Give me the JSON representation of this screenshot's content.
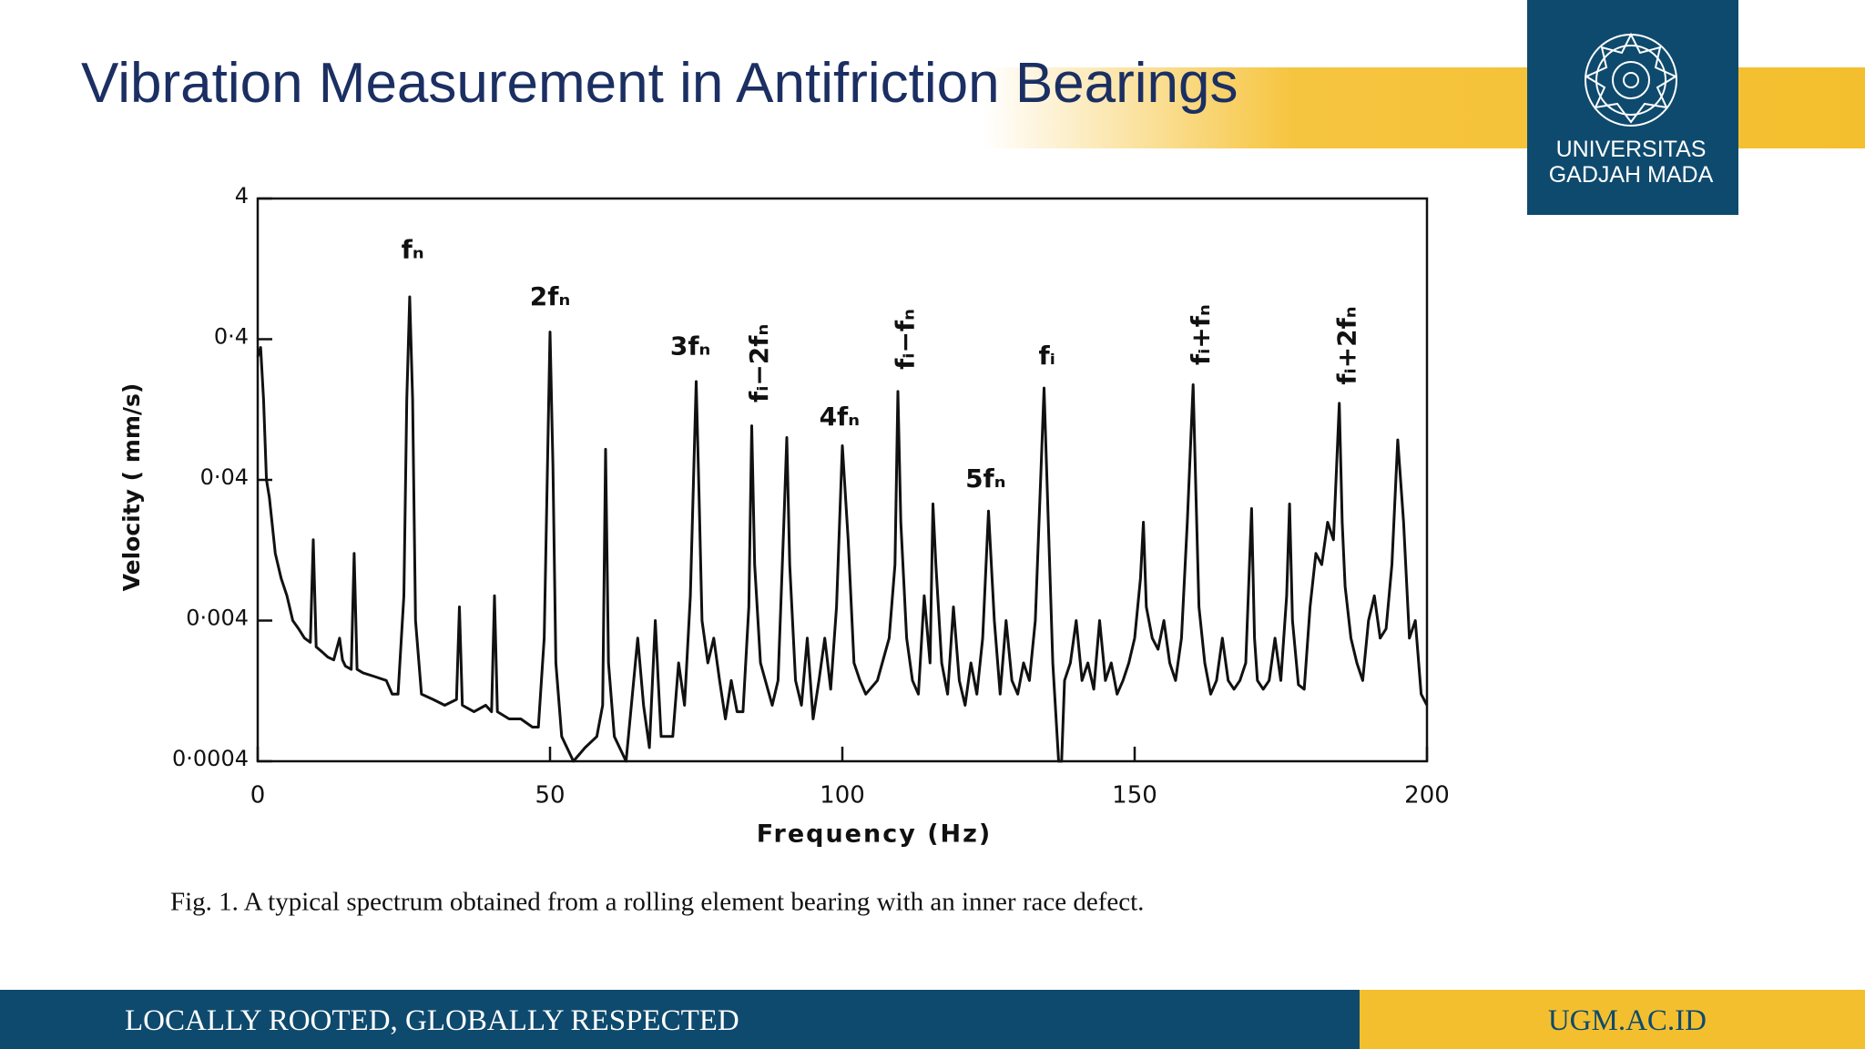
{
  "slide": {
    "title": "Vibration Measurement in Antifriction Bearings",
    "logo_lines": [
      "UNIVERSITAS",
      "GADJAH MADA"
    ],
    "footer_left": "LOCALLY ROOTED, GLOBALLY RESPECTED",
    "footer_right": "UGM.AC.ID"
  },
  "chart_data": {
    "type": "line",
    "xlabel": "Frequency (Hz)",
    "ylabel": "Velocity ( mm/s)",
    "caption": "Fig. 1.   A typical spectrum obtained from a rolling element bearing with an inner race defect.",
    "y_scale": "log",
    "color": "#111111",
    "xlim": [
      0,
      200
    ],
    "xticks": [
      0,
      50,
      100,
      150,
      200
    ],
    "ylim": [
      0.0004,
      4
    ],
    "yticks": [
      {
        "value": 0.0004,
        "label": "0·0004"
      },
      {
        "value": 0.004,
        "label": "0·004"
      },
      {
        "value": 0.04,
        "label": "0·04"
      },
      {
        "value": 0.4,
        "label": "0·4"
      },
      4
    ],
    "x": [
      0,
      0.5,
      1,
      1.5,
      2,
      3,
      4,
      5,
      6,
      7,
      8,
      9,
      9.5,
      10,
      11,
      12,
      13,
      14,
      14.5,
      15,
      16,
      16.5,
      17,
      18,
      20,
      22,
      23,
      24,
      25,
      25.5,
      26,
      26.5,
      27,
      28,
      30,
      32,
      34,
      34.5,
      35,
      37,
      39,
      40,
      40.5,
      41,
      43,
      45,
      47,
      48,
      49,
      50,
      50.5,
      51,
      52,
      54,
      56,
      58,
      59,
      59.5,
      60,
      61,
      63,
      65,
      66,
      67,
      68,
      68.5,
      69,
      71,
      72,
      73,
      74,
      75,
      75.5,
      76,
      77,
      78,
      79,
      80,
      81,
      82,
      83,
      84,
      84.5,
      85,
      86,
      88,
      89,
      90,
      90.5,
      91,
      92,
      93,
      94,
      95,
      96,
      97,
      98,
      99,
      100,
      101,
      102,
      103,
      104,
      106,
      108,
      109,
      109.5,
      110,
      111,
      112,
      113,
      114,
      115,
      115.5,
      116,
      117,
      118,
      119,
      120,
      121,
      122,
      123,
      124,
      125,
      126,
      127,
      128,
      129,
      130,
      131,
      132,
      133,
      134,
      134.5,
      135,
      136,
      137,
      137.5,
      138,
      139,
      140,
      141,
      142,
      143,
      144,
      145,
      146,
      147,
      148,
      149,
      150,
      151,
      151.5,
      152,
      153,
      154,
      155,
      156,
      157,
      158,
      159,
      160,
      160.5,
      161,
      162,
      163,
      164,
      165,
      166,
      167,
      168,
      169,
      170,
      170.5,
      171,
      172,
      173,
      174,
      175,
      176,
      176.5,
      177,
      178,
      179,
      180,
      181,
      182,
      183,
      184,
      185,
      185.5,
      186,
      187,
      188,
      189,
      190,
      191,
      192,
      193,
      194,
      195,
      196,
      197,
      198,
      199,
      200
    ],
    "values": [
      0.3,
      0.35,
      0.15,
      0.04,
      0.03,
      0.012,
      0.008,
      0.006,
      0.004,
      0.0035,
      0.003,
      0.0028,
      0.015,
      0.0026,
      0.0024,
      0.0022,
      0.0021,
      0.003,
      0.0021,
      0.0019,
      0.0018,
      0.012,
      0.0018,
      0.0017,
      0.0016,
      0.0015,
      0.0012,
      0.0012,
      0.006,
      0.15,
      0.8,
      0.15,
      0.004,
      0.0012,
      0.0011,
      0.001,
      0.0011,
      0.005,
      0.001,
      0.0009,
      0.001,
      0.0009,
      0.006,
      0.0009,
      0.0008,
      0.0008,
      0.0007,
      0.0007,
      0.003,
      0.45,
      0.05,
      0.002,
      0.0006,
      0.0004,
      0.0005,
      0.0006,
      0.001,
      0.066,
      0.002,
      0.0006,
      0.0004,
      0.003,
      0.001,
      0.0005,
      0.004,
      0.0015,
      0.0006,
      0.0006,
      0.002,
      0.001,
      0.006,
      0.2,
      0.03,
      0.004,
      0.002,
      0.003,
      0.0015,
      0.0008,
      0.0015,
      0.0009,
      0.0009,
      0.005,
      0.097,
      0.01,
      0.002,
      0.001,
      0.0015,
      0.02,
      0.08,
      0.01,
      0.0015,
      0.001,
      0.003,
      0.0008,
      0.0015,
      0.003,
      0.0013,
      0.005,
      0.07,
      0.015,
      0.002,
      0.0015,
      0.0012,
      0.0015,
      0.003,
      0.01,
      0.17,
      0.02,
      0.003,
      0.0015,
      0.0012,
      0.006,
      0.002,
      0.027,
      0.01,
      0.002,
      0.0012,
      0.005,
      0.0015,
      0.001,
      0.002,
      0.0012,
      0.003,
      0.024,
      0.004,
      0.0012,
      0.004,
      0.0015,
      0.0012,
      0.002,
      0.0015,
      0.004,
      0.05,
      0.18,
      0.04,
      0.002,
      0.0004,
      0.0004,
      0.0015,
      0.002,
      0.004,
      0.0015,
      0.002,
      0.0013,
      0.004,
      0.0015,
      0.002,
      0.0012,
      0.0015,
      0.002,
      0.003,
      0.008,
      0.02,
      0.005,
      0.003,
      0.0025,
      0.004,
      0.002,
      0.0015,
      0.003,
      0.02,
      0.19,
      0.03,
      0.005,
      0.002,
      0.0012,
      0.0015,
      0.003,
      0.0015,
      0.0013,
      0.0015,
      0.002,
      0.025,
      0.003,
      0.0015,
      0.0013,
      0.0015,
      0.003,
      0.0015,
      0.006,
      0.027,
      0.004,
      0.0014,
      0.0013,
      0.005,
      0.012,
      0.01,
      0.02,
      0.015,
      0.14,
      0.02,
      0.007,
      0.003,
      0.002,
      0.0015,
      0.004,
      0.006,
      0.003,
      0.0035,
      0.01,
      0.077,
      0.02,
      0.003,
      0.004,
      0.0012,
      0.001
    ],
    "annotations": [
      {
        "text": "fₙ",
        "x": 26.5,
        "y": 1.7,
        "orientation": "horizontal"
      },
      {
        "text": "2fₙ",
        "x": 50,
        "y": 0.79,
        "orientation": "horizontal"
      },
      {
        "text": "3fₙ",
        "x": 74,
        "y": 0.35,
        "orientation": "horizontal"
      },
      {
        "text": "fᵢ−2fₙ",
        "x": 86,
        "y": 0.27,
        "orientation": "vertical"
      },
      {
        "text": "4fₙ",
        "x": 99.5,
        "y": 0.11,
        "orientation": "horizontal"
      },
      {
        "text": "fᵢ−fₙ",
        "x": 111,
        "y": 0.4,
        "orientation": "vertical"
      },
      {
        "text": "5fₙ",
        "x": 124.5,
        "y": 0.04,
        "orientation": "horizontal"
      },
      {
        "text": "fᵢ",
        "x": 135,
        "y": 0.3,
        "orientation": "horizontal"
      },
      {
        "text": "fᵢ+fₙ",
        "x": 161.5,
        "y": 0.43,
        "orientation": "vertical"
      },
      {
        "text": "fᵢ+2fₙ",
        "x": 186.5,
        "y": 0.36,
        "orientation": "vertical"
      }
    ]
  }
}
